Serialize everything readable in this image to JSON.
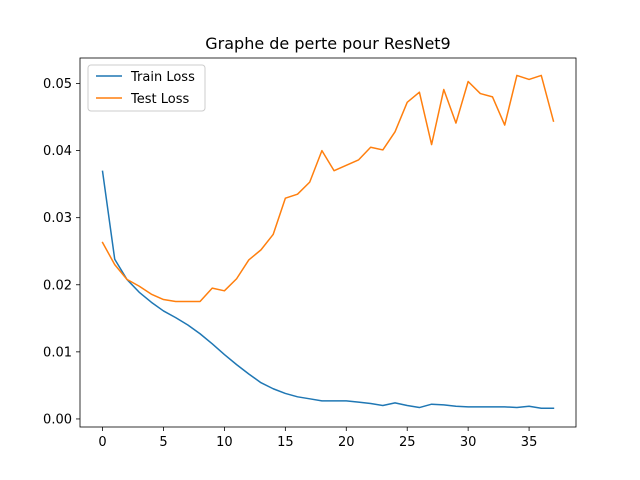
{
  "chart_data": {
    "type": "line",
    "title": "Graphe de perte pour ResNet9",
    "xlabel": "",
    "ylabel": "",
    "xlim": [
      -1.85,
      38.85
    ],
    "ylim": [
      -0.0012,
      0.0538
    ],
    "xticks": [
      0,
      5,
      10,
      15,
      20,
      25,
      30,
      35
    ],
    "xtick_labels": [
      "0",
      "5",
      "10",
      "15",
      "20",
      "25",
      "30",
      "35"
    ],
    "yticks": [
      0.0,
      0.01,
      0.02,
      0.03,
      0.04,
      0.05
    ],
    "ytick_labels": [
      "0.00",
      "0.01",
      "0.02",
      "0.03",
      "0.04",
      "0.05"
    ],
    "grid": false,
    "legend_position": "upper-left",
    "series": [
      {
        "name": "Train Loss",
        "color": "#1f77b4",
        "x": [
          0,
          1,
          2,
          3,
          4,
          5,
          6,
          7,
          8,
          9,
          10,
          11,
          12,
          13,
          14,
          15,
          16,
          17,
          18,
          19,
          20,
          21,
          22,
          23,
          24,
          25,
          26,
          27,
          28,
          29,
          30,
          31,
          32,
          33,
          34,
          35,
          36,
          37
        ],
        "values": [
          0.0369,
          0.0238,
          0.0208,
          0.0189,
          0.0174,
          0.0161,
          0.0151,
          0.014,
          0.0127,
          0.0112,
          0.0096,
          0.0081,
          0.0067,
          0.0054,
          0.0045,
          0.0038,
          0.0033,
          0.003,
          0.0027,
          0.0027,
          0.0027,
          0.0025,
          0.0023,
          0.002,
          0.0024,
          0.002,
          0.0017,
          0.0022,
          0.0021,
          0.0019,
          0.0018,
          0.0018,
          0.0018,
          0.0018,
          0.0017,
          0.0019,
          0.0016,
          0.0016
        ]
      },
      {
        "name": "Test Loss",
        "color": "#ff7f0e",
        "x": [
          0,
          1,
          2,
          3,
          4,
          5,
          6,
          7,
          8,
          9,
          10,
          11,
          12,
          13,
          14,
          15,
          16,
          17,
          18,
          19,
          20,
          21,
          22,
          23,
          24,
          25,
          26,
          27,
          28,
          29,
          30,
          31,
          32,
          33,
          34,
          35,
          36,
          37
        ],
        "values": [
          0.0263,
          0.023,
          0.0208,
          0.0198,
          0.0186,
          0.0178,
          0.0175,
          0.0175,
          0.0175,
          0.0195,
          0.0191,
          0.0209,
          0.0237,
          0.0252,
          0.0275,
          0.0329,
          0.0335,
          0.0353,
          0.04,
          0.037,
          0.0378,
          0.0386,
          0.0405,
          0.0401,
          0.0428,
          0.0472,
          0.0487,
          0.0409,
          0.0491,
          0.0441,
          0.0503,
          0.0485,
          0.048,
          0.0438,
          0.0512,
          0.0506,
          0.0512,
          0.0444
        ]
      }
    ]
  }
}
